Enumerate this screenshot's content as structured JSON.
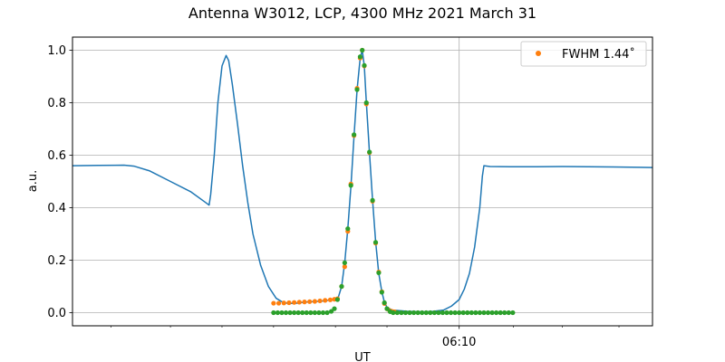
{
  "chart_data": {
    "type": "line",
    "title": "Antenna W3012, LCP, 4300 MHz 2021 March 31",
    "xlabel": "UT",
    "ylabel": "a.u.",
    "x_units": "minutes relative to 06:10 UT",
    "xlim": [
      -7.5,
      3.75
    ],
    "ylim": [
      -0.05,
      1.05
    ],
    "x_ticks": [
      {
        "x": 0,
        "label": "06:10"
      }
    ],
    "x_minor_ticks": [
      -6.75,
      -5.6,
      -4.6,
      -3.6,
      -2.4,
      -1.4,
      1.05,
      2.0,
      3.1
    ],
    "y_ticks": [
      {
        "y": 0.0,
        "label": "0.0"
      },
      {
        "y": 0.2,
        "label": "0.2"
      },
      {
        "y": 0.4,
        "label": "0.4"
      },
      {
        "y": 0.6,
        "label": "0.6"
      },
      {
        "y": 0.8,
        "label": "0.8"
      },
      {
        "y": 1.0,
        "label": "1.0"
      }
    ],
    "grid": true,
    "legend_position": "top-right",
    "colors": {
      "series_line": "#1f77b4",
      "series_fit": "#ff7f0e",
      "series_beam": "#2ca02c",
      "grid": "#b0b0b0"
    },
    "series": [
      {
        "style": "line",
        "color": "#1f77b4",
        "points": [
          [
            -7.5,
            0.56
          ],
          [
            -7.0,
            0.561
          ],
          [
            -6.5,
            0.562
          ],
          [
            -6.3,
            0.558
          ],
          [
            -6.0,
            0.54
          ],
          [
            -5.6,
            0.5
          ],
          [
            -5.2,
            0.46
          ],
          [
            -4.92,
            0.42
          ],
          [
            -4.85,
            0.41
          ],
          [
            -4.82,
            0.45
          ],
          [
            -4.75,
            0.6
          ],
          [
            -4.68,
            0.8
          ],
          [
            -4.6,
            0.94
          ],
          [
            -4.52,
            0.98
          ],
          [
            -4.47,
            0.96
          ],
          [
            -4.4,
            0.87
          ],
          [
            -4.3,
            0.72
          ],
          [
            -4.2,
            0.56
          ],
          [
            -4.1,
            0.42
          ],
          [
            -4.0,
            0.3
          ],
          [
            -3.85,
            0.18
          ],
          [
            -3.7,
            0.1
          ],
          [
            -3.55,
            0.055
          ],
          [
            -3.4,
            0.037
          ],
          [
            -3.2,
            0.035
          ],
          [
            -3.0,
            0.04
          ],
          [
            -2.6,
            0.045
          ],
          [
            -2.35,
            0.055
          ],
          [
            -2.28,
            0.1
          ],
          [
            -2.22,
            0.19
          ],
          [
            -2.16,
            0.32
          ],
          [
            -2.1,
            0.48
          ],
          [
            -2.04,
            0.67
          ],
          [
            -1.98,
            0.85
          ],
          [
            -1.92,
            0.97
          ],
          [
            -1.88,
            1.0
          ],
          [
            -1.84,
            0.94
          ],
          [
            -1.8,
            0.8
          ],
          [
            -1.74,
            0.61
          ],
          [
            -1.68,
            0.43
          ],
          [
            -1.62,
            0.27
          ],
          [
            -1.56,
            0.15
          ],
          [
            -1.5,
            0.08
          ],
          [
            -1.45,
            0.04
          ],
          [
            -1.4,
            0.02
          ],
          [
            -1.3,
            0.01
          ],
          [
            -1.0,
            0.005
          ],
          [
            -0.7,
            0.003
          ],
          [
            -0.5,
            0.005
          ],
          [
            -0.3,
            0.01
          ],
          [
            -0.15,
            0.025
          ],
          [
            0.0,
            0.05
          ],
          [
            0.1,
            0.09
          ],
          [
            0.2,
            0.15
          ],
          [
            0.3,
            0.25
          ],
          [
            0.4,
            0.4
          ],
          [
            0.45,
            0.52
          ],
          [
            0.48,
            0.56
          ],
          [
            0.6,
            0.557
          ],
          [
            1.0,
            0.556
          ],
          [
            1.5,
            0.556
          ],
          [
            2.0,
            0.557
          ],
          [
            2.5,
            0.556
          ],
          [
            3.0,
            0.555
          ],
          [
            3.5,
            0.554
          ],
          [
            3.75,
            0.553
          ]
        ]
      },
      {
        "name": "FWHM 1.44˚",
        "style": "points",
        "color": "#ff7f0e",
        "points": [
          [
            -3.6,
            0.036
          ],
          [
            -3.5,
            0.036
          ],
          [
            -3.4,
            0.037
          ],
          [
            -3.3,
            0.038
          ],
          [
            -3.2,
            0.039
          ],
          [
            -3.1,
            0.04
          ],
          [
            -3.0,
            0.041
          ],
          [
            -2.9,
            0.042
          ],
          [
            -2.8,
            0.043
          ],
          [
            -2.7,
            0.045
          ],
          [
            -2.6,
            0.047
          ],
          [
            -2.5,
            0.049
          ],
          [
            -2.42,
            0.051
          ],
          [
            -2.36,
            0.053
          ],
          [
            -2.28,
            0.1
          ],
          [
            -2.22,
            0.175
          ],
          [
            -2.16,
            0.31
          ],
          [
            -2.1,
            0.49
          ],
          [
            -2.04,
            0.675
          ],
          [
            -1.98,
            0.855
          ],
          [
            -1.92,
            0.97
          ],
          [
            -1.88,
            1.0
          ],
          [
            -1.84,
            0.94
          ],
          [
            -1.8,
            0.795
          ],
          [
            -1.74,
            0.61
          ],
          [
            -1.68,
            0.425
          ],
          [
            -1.62,
            0.265
          ],
          [
            -1.56,
            0.155
          ],
          [
            -1.5,
            0.08
          ],
          [
            -1.45,
            0.035
          ],
          [
            -1.4,
            0.015
          ],
          [
            -1.35,
            0.008
          ],
          [
            -1.3,
            0.005
          ],
          [
            -1.25,
            0.003
          ]
        ]
      },
      {
        "style": "points",
        "color": "#2ca02c",
        "points": [
          [
            -3.6,
            0.0
          ],
          [
            -3.52,
            0.0
          ],
          [
            -3.44,
            0.0
          ],
          [
            -3.36,
            0.0
          ],
          [
            -3.28,
            0.0
          ],
          [
            -3.2,
            0.0
          ],
          [
            -3.12,
            0.0
          ],
          [
            -3.04,
            0.0
          ],
          [
            -2.96,
            0.0
          ],
          [
            -2.88,
            0.0
          ],
          [
            -2.8,
            0.0
          ],
          [
            -2.72,
            0.0
          ],
          [
            -2.64,
            0.0
          ],
          [
            -2.56,
            0.0
          ],
          [
            -2.48,
            0.005
          ],
          [
            -2.42,
            0.015
          ],
          [
            -2.36,
            0.05
          ],
          [
            -2.28,
            0.1
          ],
          [
            -2.22,
            0.19
          ],
          [
            -2.16,
            0.32
          ],
          [
            -2.1,
            0.485
          ],
          [
            -2.04,
            0.678
          ],
          [
            -1.98,
            0.85
          ],
          [
            -1.92,
            0.975
          ],
          [
            -1.88,
            1.0
          ],
          [
            -1.84,
            0.942
          ],
          [
            -1.8,
            0.8
          ],
          [
            -1.74,
            0.612
          ],
          [
            -1.68,
            0.428
          ],
          [
            -1.62,
            0.268
          ],
          [
            -1.56,
            0.152
          ],
          [
            -1.5,
            0.078
          ],
          [
            -1.45,
            0.038
          ],
          [
            -1.4,
            0.015
          ],
          [
            -1.34,
            0.004
          ],
          [
            -1.28,
            0.0
          ],
          [
            -1.2,
            0.0
          ],
          [
            -1.12,
            0.0
          ],
          [
            -1.04,
            0.0
          ],
          [
            -0.96,
            0.0
          ],
          [
            -0.88,
            0.0
          ],
          [
            -0.8,
            0.0
          ],
          [
            -0.72,
            0.0
          ],
          [
            -0.64,
            0.0
          ],
          [
            -0.56,
            0.0
          ],
          [
            -0.48,
            0.0
          ],
          [
            -0.4,
            0.0
          ],
          [
            -0.32,
            0.0
          ],
          [
            -0.24,
            0.0
          ],
          [
            -0.16,
            0.0
          ],
          [
            -0.08,
            0.0
          ],
          [
            0.0,
            0.0
          ],
          [
            0.08,
            0.0
          ],
          [
            0.16,
            0.0
          ],
          [
            0.24,
            0.0
          ],
          [
            0.32,
            0.0
          ],
          [
            0.4,
            0.0
          ],
          [
            0.48,
            0.0
          ],
          [
            0.56,
            0.0
          ],
          [
            0.64,
            0.0
          ],
          [
            0.72,
            0.0
          ],
          [
            0.8,
            0.0
          ],
          [
            0.88,
            0.0
          ],
          [
            0.96,
            0.0
          ],
          [
            1.04,
            0.0
          ]
        ]
      }
    ]
  }
}
